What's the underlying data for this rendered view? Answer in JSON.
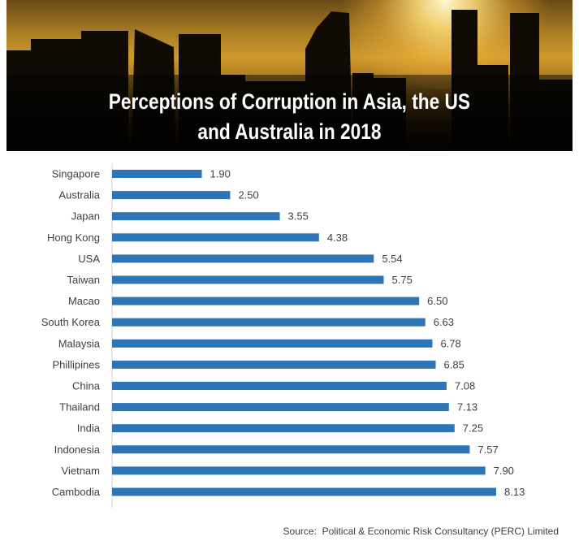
{
  "title_line1": "Perceptions of Corruption in Asia, the US",
  "title_line2": "and Australia in 2018",
  "source": "Source:  Political & Economic Risk Consultancy (PERC) Limited",
  "colors": {
    "bar": "#2e75b6",
    "axis": "#d0d0d0",
    "text": "#404040"
  },
  "chart_data": {
    "type": "bar",
    "orientation": "horizontal",
    "title": "Perceptions of Corruption in Asia, the US and Australia in 2018",
    "categories": [
      "Singapore",
      "Australia",
      "Japan",
      "Hong Kong",
      "USA",
      "Taiwan",
      "Macao",
      "South Korea",
      "Malaysia",
      "Phillipines",
      "China",
      "Thailand",
      "India",
      "Indonesia",
      "Vietnam",
      "Cambodia"
    ],
    "values": [
      1.9,
      2.5,
      3.55,
      4.38,
      5.54,
      5.75,
      6.5,
      6.63,
      6.78,
      6.85,
      7.08,
      7.13,
      7.25,
      7.57,
      7.9,
      8.13
    ],
    "value_labels": [
      "1.90",
      "2.50",
      "3.55",
      "4.38",
      "5.54",
      "5.75",
      "6.50",
      "6.63",
      "6.78",
      "6.85",
      "7.08",
      "7.13",
      "7.25",
      "7.57",
      "7.90",
      "8.13"
    ],
    "xlim": [
      0,
      8.13
    ],
    "grid": false,
    "legend": "none",
    "data_labels": true
  }
}
